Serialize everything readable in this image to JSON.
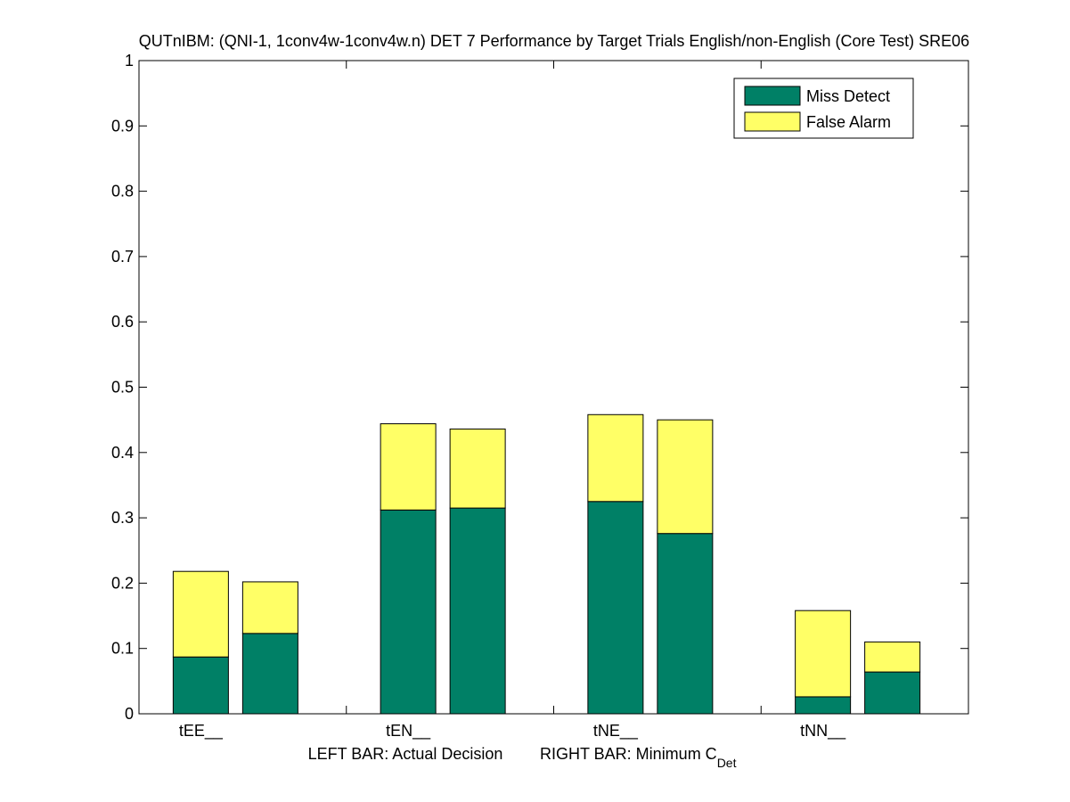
{
  "chart_data": {
    "type": "bar",
    "stacked": true,
    "title": "QUTnIBM: (QNI-1, 1conv4w-1conv4w.n) DET 7 Performance by Target Trials English/non-English (Core Test) SRE06",
    "categories": [
      "tEE__",
      "tEN__",
      "tNE__",
      "tNN__"
    ],
    "xlabel": {
      "left": "LEFT BAR: Actual Decision",
      "right_main": "RIGHT BAR: Minimum C",
      "right_sub": "Det"
    },
    "ylabel": "",
    "ylim": [
      0,
      1
    ],
    "yticks": [
      "0",
      "0.1",
      "0.2",
      "0.3",
      "0.4",
      "0.5",
      "0.6",
      "0.7",
      "0.8",
      "0.9",
      "1"
    ],
    "bars_per_category": [
      "Actual Decision",
      "Minimum C_Det"
    ],
    "series": [
      {
        "name": "Miss Detect",
        "color": "#008066",
        "actual": [
          0.087,
          0.312,
          0.325,
          0.026
        ],
        "minimum": [
          0.123,
          0.315,
          0.276,
          0.064
        ]
      },
      {
        "name": "False Alarm",
        "color": "#ffff66",
        "actual": [
          0.131,
          0.132,
          0.133,
          0.132
        ],
        "minimum": [
          0.079,
          0.121,
          0.174,
          0.046
        ]
      }
    ],
    "legend_position": "top-right",
    "grid": false
  }
}
